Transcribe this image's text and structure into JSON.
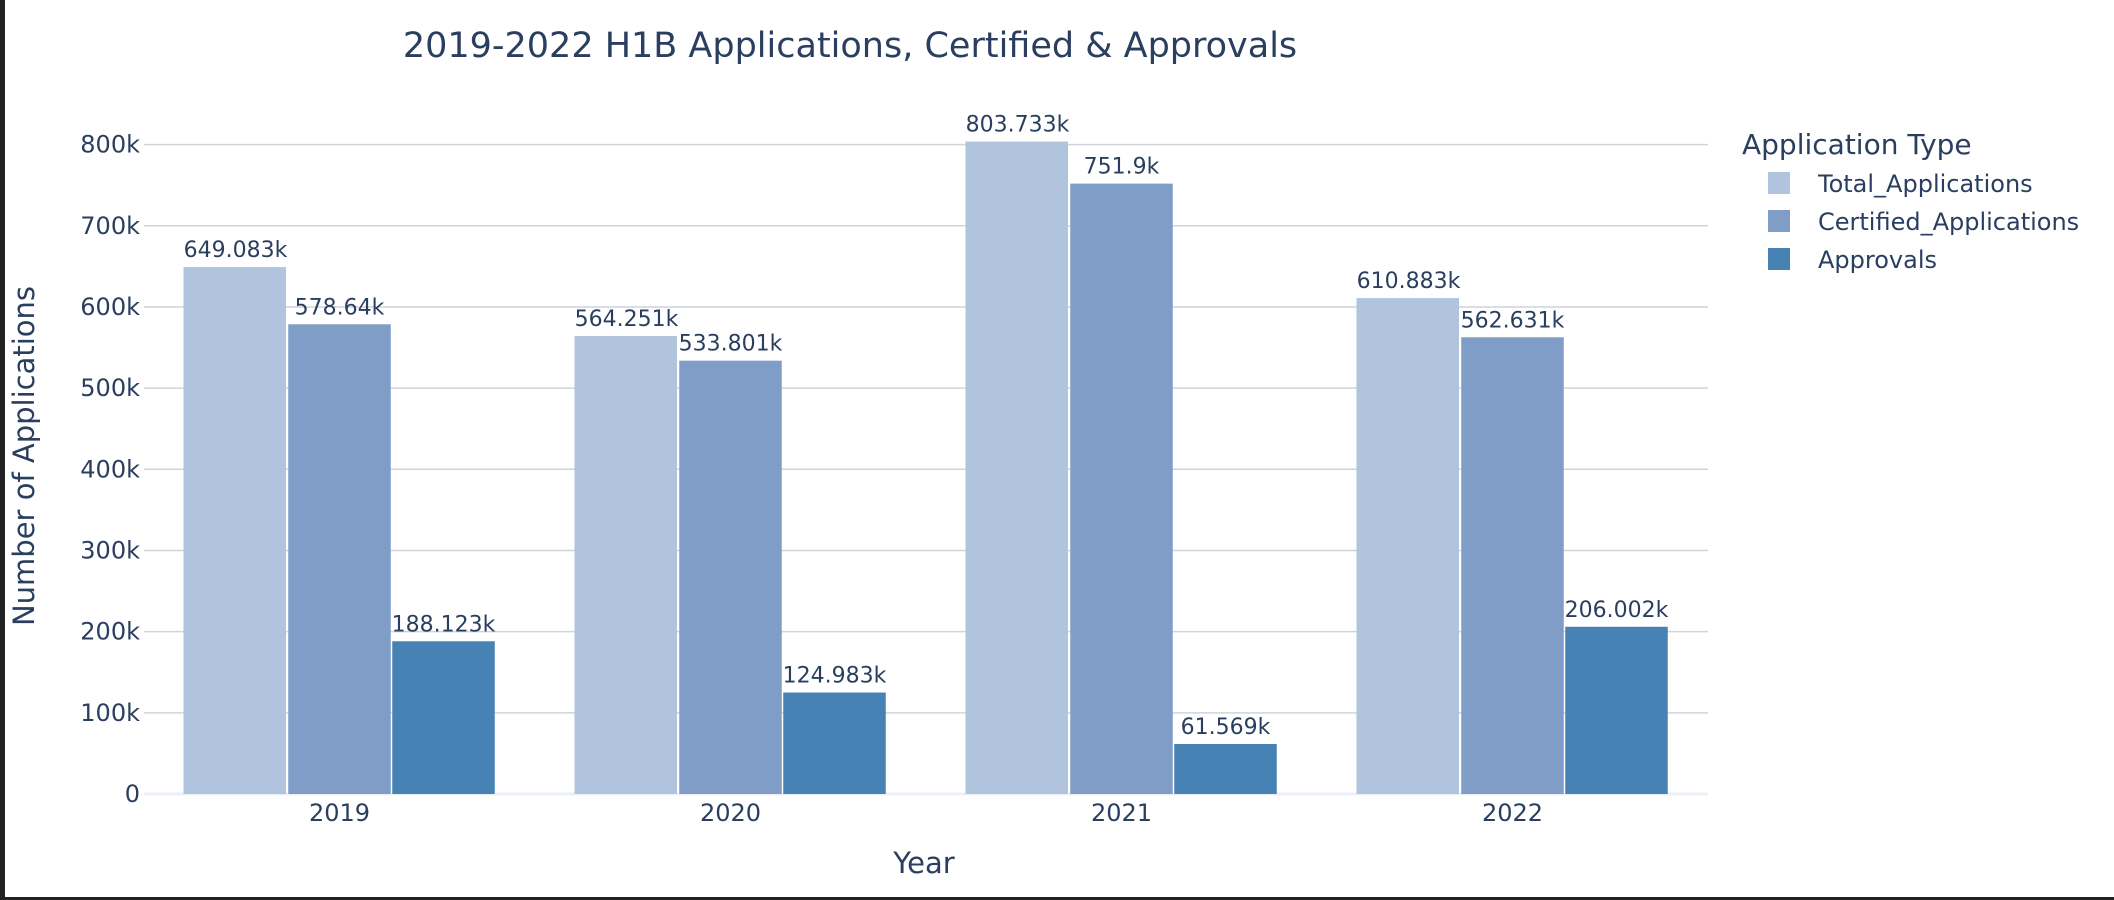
{
  "chart_data": {
    "type": "bar",
    "title": "2019-2022 H1B Applications, Certified & Approvals",
    "xlabel": "Year",
    "ylabel": "Number of Applications",
    "categories": [
      "2019",
      "2020",
      "2021",
      "2022"
    ],
    "series": [
      {
        "name": "Total_Applications",
        "color": "#b0c4de",
        "values": [
          649083,
          564251,
          803733,
          610883
        ],
        "labels": [
          "649.083k",
          "564.251k",
          "803.733k",
          "610.883k"
        ]
      },
      {
        "name": "Certified_Applications",
        "color": "#7f9dc7",
        "values": [
          578640,
          533801,
          751900,
          562631
        ],
        "labels": [
          "578.64k",
          "533.801k",
          "751.9k",
          "562.631k"
        ]
      },
      {
        "name": "Approvals",
        "color": "#4682b4",
        "values": [
          188123,
          124983,
          61569,
          206002
        ],
        "labels": [
          "188.123k",
          "124.983k",
          "61.569k",
          "206.002k"
        ]
      }
    ],
    "ylim": [
      0,
      850000
    ],
    "yticks": [
      0,
      100000,
      200000,
      300000,
      400000,
      500000,
      600000,
      700000,
      800000
    ],
    "ytick_labels": [
      "0",
      "100k",
      "200k",
      "300k",
      "400k",
      "500k",
      "600k",
      "700k",
      "800k"
    ],
    "grid": true,
    "legend": {
      "title": "Application Type",
      "placement": "top-right"
    }
  }
}
